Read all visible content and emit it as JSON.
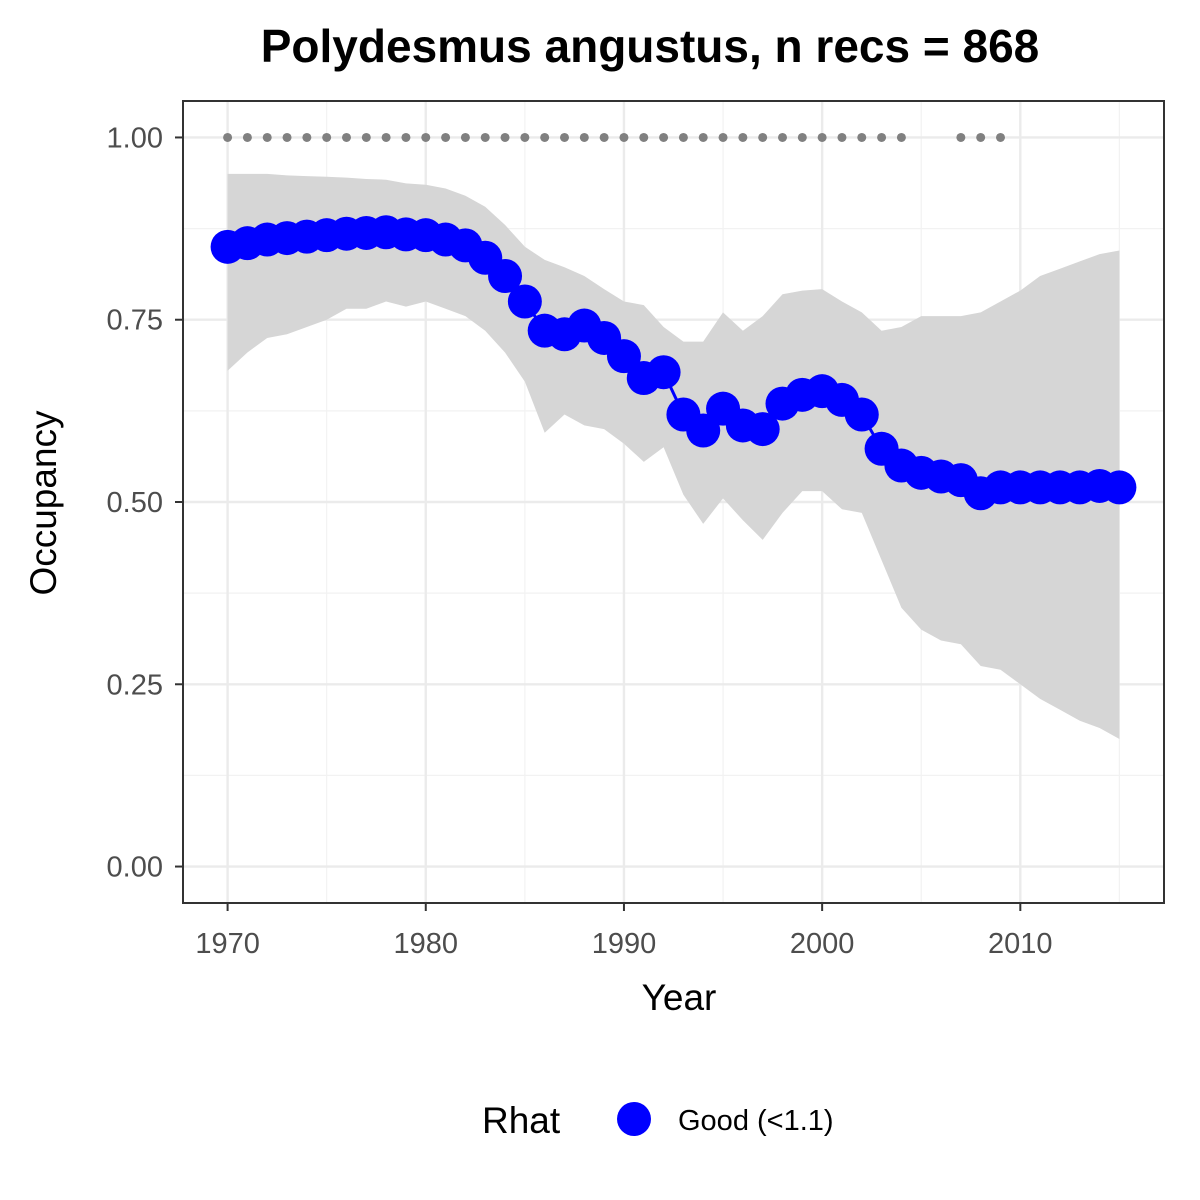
{
  "chart_data": {
    "type": "line",
    "title": "Polydesmus angustus, n recs = 868",
    "xlabel": "Year",
    "ylabel": "Occupancy",
    "xlim": [
      1967.75,
      2017.25
    ],
    "ylim": [
      -0.05,
      1.05
    ],
    "x_ticks": [
      1970,
      1980,
      1990,
      2000,
      2010
    ],
    "x_tick_labels": [
      "1970",
      "1980",
      "1990",
      "2000",
      "2010"
    ],
    "y_ticks": [
      0,
      0.25,
      0.5,
      0.75,
      1.0
    ],
    "y_tick_labels": [
      "0.00",
      "0.25",
      "0.50",
      "0.75",
      "1.00"
    ],
    "grid": true,
    "legend": {
      "title": "Rhat",
      "position": "bottom",
      "entries": [
        {
          "label": "Good (<1.1)",
          "color": "#0000ff"
        }
      ]
    },
    "series": [
      {
        "name": "Good (<1.1)",
        "color": "#0000ff",
        "x": [
          1970,
          1971,
          1972,
          1973,
          1974,
          1975,
          1976,
          1977,
          1978,
          1979,
          1980,
          1981,
          1982,
          1983,
          1984,
          1985,
          1986,
          1987,
          1988,
          1989,
          1990,
          1991,
          1992,
          1993,
          1994,
          1995,
          1996,
          1997,
          1998,
          1999,
          2000,
          2001,
          2002,
          2003,
          2004,
          2005,
          2006,
          2007,
          2008,
          2009,
          2010,
          2011,
          2012,
          2013,
          2014,
          2015
        ],
        "y": [
          0.85,
          0.855,
          0.86,
          0.862,
          0.864,
          0.866,
          0.868,
          0.869,
          0.87,
          0.867,
          0.866,
          0.86,
          0.852,
          0.835,
          0.81,
          0.775,
          0.735,
          0.73,
          0.742,
          0.725,
          0.7,
          0.67,
          0.678,
          0.62,
          0.598,
          0.628,
          0.605,
          0.6,
          0.635,
          0.647,
          0.652,
          0.64,
          0.62,
          0.573,
          0.55,
          0.54,
          0.535,
          0.53,
          0.512,
          0.52,
          0.52,
          0.52,
          0.52,
          0.52,
          0.522,
          0.52
        ]
      }
    ],
    "ci_band": {
      "color": "#d6d6d6",
      "x": [
        1970,
        1971,
        1972,
        1973,
        1974,
        1975,
        1976,
        1977,
        1978,
        1979,
        1980,
        1981,
        1982,
        1983,
        1984,
        1985,
        1986,
        1987,
        1988,
        1989,
        1990,
        1991,
        1992,
        1993,
        1994,
        1995,
        1996,
        1997,
        1998,
        1999,
        2000,
        2001,
        2002,
        2003,
        2004,
        2005,
        2006,
        2007,
        2008,
        2009,
        2010,
        2011,
        2012,
        2013,
        2014,
        2015
      ],
      "lower": [
        0.68,
        0.705,
        0.725,
        0.73,
        0.74,
        0.75,
        0.765,
        0.765,
        0.775,
        0.768,
        0.775,
        0.765,
        0.755,
        0.735,
        0.705,
        0.665,
        0.595,
        0.62,
        0.605,
        0.6,
        0.58,
        0.555,
        0.575,
        0.51,
        0.47,
        0.505,
        0.475,
        0.448,
        0.485,
        0.515,
        0.515,
        0.49,
        0.485,
        0.42,
        0.355,
        0.325,
        0.31,
        0.305,
        0.275,
        0.27,
        0.25,
        0.23,
        0.215,
        0.2,
        0.19,
        0.175
      ],
      "upper": [
        0.95,
        0.95,
        0.95,
        0.948,
        0.947,
        0.946,
        0.945,
        0.943,
        0.942,
        0.937,
        0.935,
        0.93,
        0.92,
        0.905,
        0.88,
        0.85,
        0.832,
        0.822,
        0.81,
        0.792,
        0.775,
        0.77,
        0.74,
        0.72,
        0.72,
        0.76,
        0.735,
        0.755,
        0.785,
        0.79,
        0.792,
        0.775,
        0.76,
        0.735,
        0.74,
        0.755,
        0.755,
        0.755,
        0.76,
        0.775,
        0.79,
        0.81,
        0.82,
        0.83,
        0.84,
        0.845
      ]
    },
    "data_years": {
      "color": "#808080",
      "y": 1.0,
      "x": [
        1970,
        1971,
        1972,
        1973,
        1974,
        1975,
        1976,
        1977,
        1978,
        1979,
        1980,
        1981,
        1982,
        1983,
        1984,
        1985,
        1986,
        1987,
        1988,
        1989,
        1990,
        1991,
        1992,
        1993,
        1994,
        1995,
        1996,
        1997,
        1998,
        1999,
        2000,
        2001,
        2002,
        2003,
        2004,
        2007,
        2008,
        2009
      ]
    }
  }
}
